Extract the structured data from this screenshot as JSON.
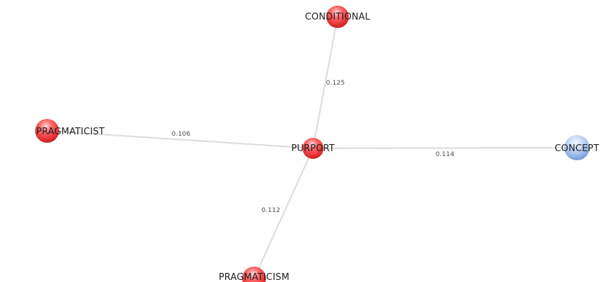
{
  "graph": {
    "nodes": [
      {
        "id": "purport",
        "label": "PURPORT",
        "color": "red"
      },
      {
        "id": "conditional",
        "label": "CONDITIONAL",
        "color": "red"
      },
      {
        "id": "pragmaticist",
        "label": "PRAGMATICIST",
        "color": "red"
      },
      {
        "id": "concept",
        "label": "CONCEPT",
        "color": "blue"
      },
      {
        "id": "pragmaticism",
        "label": "PRAGMATICISM",
        "color": "red"
      }
    ],
    "edges": [
      {
        "from": "purport",
        "to": "conditional",
        "weight": "0.125"
      },
      {
        "from": "purport",
        "to": "pragmaticist",
        "weight": "0.106"
      },
      {
        "from": "purport",
        "to": "concept",
        "weight": "0.114"
      },
      {
        "from": "purport",
        "to": "pragmaticism",
        "weight": "0.112"
      }
    ],
    "colors": {
      "red_node": "#e8363a",
      "blue_node": "#8fb3e6",
      "edge": "#dedede"
    }
  }
}
